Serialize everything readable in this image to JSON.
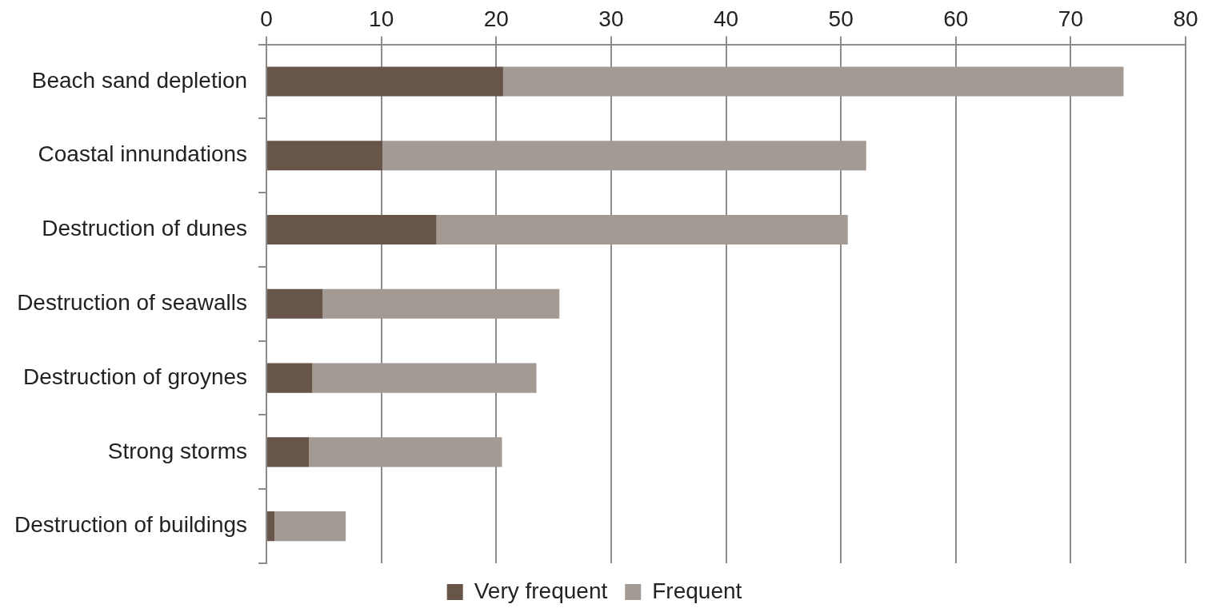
{
  "chart_data": {
    "type": "bar",
    "orientation": "horizontal",
    "stacked": true,
    "categories": [
      "Beach sand depletion",
      "Coastal innundations",
      "Destruction of dunes",
      "Destruction of seawalls",
      "Destruction of groynes",
      "Strong storms",
      "Destruction of buildings"
    ],
    "series": [
      {
        "name": "Very frequent",
        "color": "#665548",
        "values": [
          20.6,
          10.1,
          14.8,
          4.9,
          4.0,
          3.7,
          0.7
        ]
      },
      {
        "name": "Frequent",
        "color": "#a39a94",
        "values": [
          54.0,
          42.1,
          35.8,
          20.6,
          19.5,
          16.8,
          6.2
        ]
      }
    ],
    "xlim": [
      0,
      80
    ],
    "xticks": [
      0,
      10,
      20,
      30,
      40,
      50,
      60,
      70,
      80
    ],
    "grid": "x",
    "legend": "bottom"
  }
}
